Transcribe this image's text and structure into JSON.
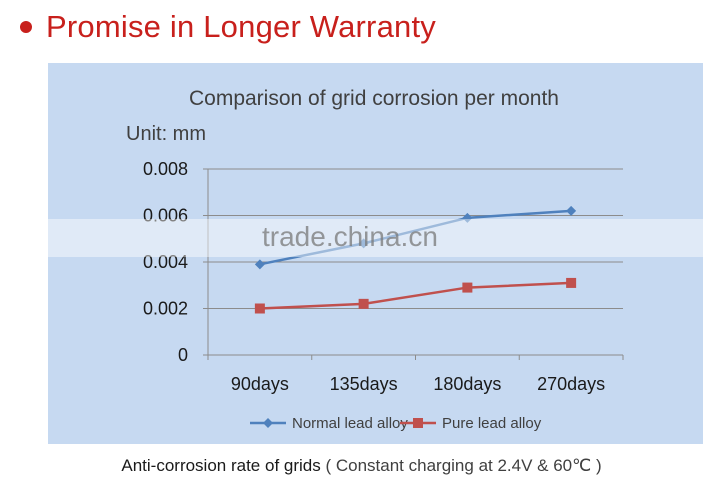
{
  "header": {
    "title": "Promise in Longer Warranty"
  },
  "colors": {
    "accent": "#c8201c",
    "panel_bg": "#c6d9f1",
    "series_normal": "#4f81bd",
    "series_pure": "#c0504d"
  },
  "chart_data": {
    "type": "line",
    "title": "Comparison of grid corrosion per month",
    "unit_label": "Unit: mm",
    "categories": [
      "90days",
      "135days",
      "180days",
      "270days"
    ],
    "series": [
      {
        "name": "Normal lead alloy",
        "marker": "diamond",
        "color": "#4f81bd",
        "values": [
          0.0039,
          0.0048,
          0.0059,
          0.0062
        ]
      },
      {
        "name": "Pure lead alloy",
        "marker": "square",
        "color": "#c0504d",
        "values": [
          0.002,
          0.0022,
          0.0029,
          0.0031
        ]
      }
    ],
    "yticks": [
      "0",
      "0.002",
      "0.004",
      "0.006",
      "0.008"
    ],
    "ylim": [
      0,
      0.008
    ],
    "grid": true,
    "legend_position": "bottom"
  },
  "caption": {
    "main": "Anti-corrosion rate of grids",
    "sub": "( Constant charging at 2.4V & 60℃ )"
  },
  "watermark": "trade.china.cn"
}
